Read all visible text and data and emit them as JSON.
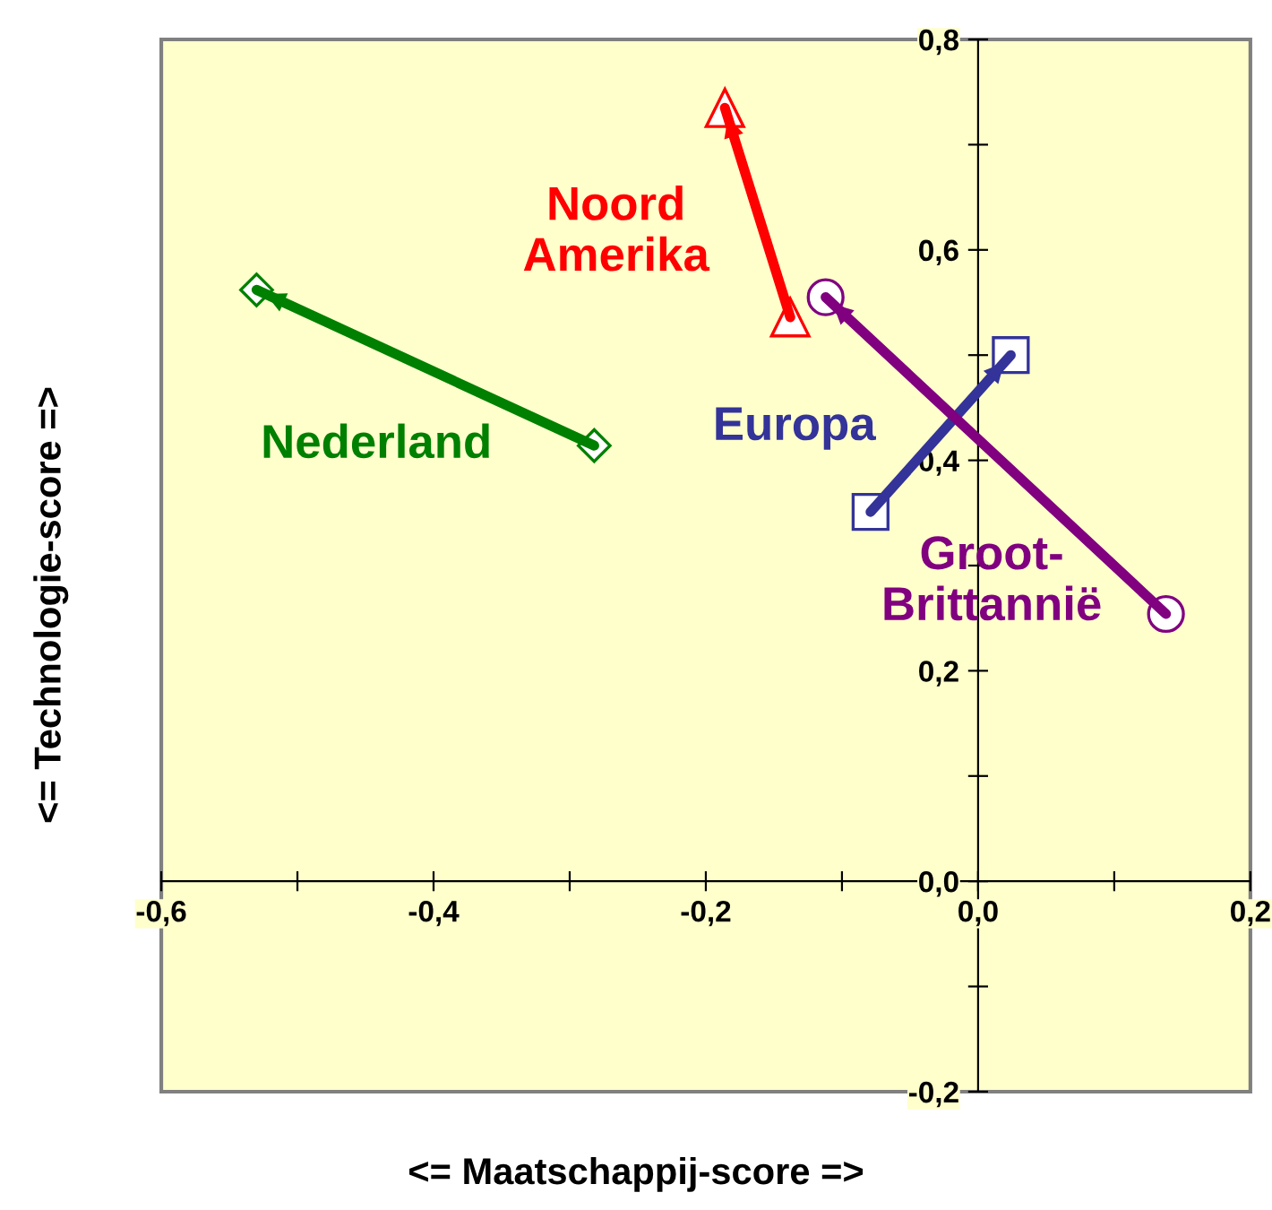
{
  "chart_data": {
    "type": "line",
    "xlabel": "<= Maatschappij-score =>",
    "ylabel": "<= Technologie-score =>",
    "xlim": [
      -0.6,
      0.2
    ],
    "ylim": [
      -0.2,
      0.8
    ],
    "xticks": [
      {
        "value": -0.6,
        "label": "-0,6"
      },
      {
        "value": -0.5,
        "label": null
      },
      {
        "value": -0.4,
        "label": "-0,4"
      },
      {
        "value": -0.3,
        "label": null
      },
      {
        "value": -0.2,
        "label": "-0,2"
      },
      {
        "value": -0.1,
        "label": null
      },
      {
        "value": 0.0,
        "label": "0,0"
      },
      {
        "value": 0.1,
        "label": null
      },
      {
        "value": 0.2,
        "label": "0,2"
      }
    ],
    "yticks": [
      {
        "value": -0.2,
        "label": "-0,2"
      },
      {
        "value": -0.1,
        "label": null
      },
      {
        "value": 0.0,
        "label": "0,0"
      },
      {
        "value": 0.1,
        "label": null
      },
      {
        "value": 0.2,
        "label": "0,2"
      },
      {
        "value": 0.3,
        "label": null
      },
      {
        "value": 0.4,
        "label": "0,4"
      },
      {
        "value": 0.5,
        "label": null
      },
      {
        "value": 0.6,
        "label": "0,6"
      },
      {
        "value": 0.7,
        "label": null
      },
      {
        "value": 0.8,
        "label": "0,8"
      }
    ],
    "grid": false,
    "series": [
      {
        "name": "Nederland",
        "color": "#008000",
        "marker": "diamond",
        "x": [
          -0.282,
          -0.53
        ],
        "values": [
          0.414,
          0.562
        ]
      },
      {
        "name": "Noord\nAmerika",
        "color": "#ff0000",
        "marker": "triangle",
        "x": [
          -0.138,
          -0.186
        ],
        "values": [
          0.536,
          0.735
        ]
      },
      {
        "name": "Europa",
        "color": "#333399",
        "marker": "square",
        "x": [
          -0.079,
          0.024
        ],
        "values": [
          0.351,
          0.5
        ]
      },
      {
        "name": "Groot-\nBrittannië",
        "color": "#800080",
        "marker": "circle",
        "x": [
          0.138,
          -0.112
        ],
        "values": [
          0.254,
          0.555
        ]
      }
    ]
  }
}
